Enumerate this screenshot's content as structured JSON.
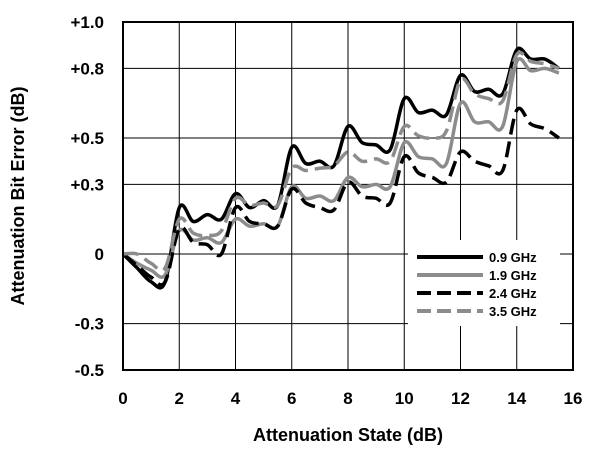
{
  "chart_data": {
    "type": "line",
    "xlabel": "Attenuation State (dB)",
    "ylabel": "Attenuation Bit Error (dB)",
    "xlim": [
      0,
      16
    ],
    "ylim": [
      -0.5,
      1.0
    ],
    "x_ticks": [
      0,
      2,
      4,
      6,
      8,
      10,
      12,
      14,
      16
    ],
    "x_tick_labels": [
      "0",
      "2",
      "4",
      "6",
      "8",
      "10",
      "12",
      "14",
      "16"
    ],
    "y_ticks": [
      1.0,
      0.8,
      0.5,
      0.3,
      0,
      -0.3,
      -0.5
    ],
    "y_tick_labels": [
      "+1.0",
      "+0.8",
      "+0.5",
      "+0.3",
      "0",
      "-0.3",
      "-0.5"
    ],
    "grid": true,
    "legend_position": "bottom-right",
    "x": [
      0,
      0.5,
      1,
      1.5,
      2,
      2.5,
      3,
      3.5,
      4,
      4.5,
      5,
      5.5,
      6,
      6.5,
      7,
      7.5,
      8,
      8.5,
      9,
      9.5,
      10,
      10.5,
      11,
      11.5,
      12,
      12.5,
      13,
      13.5,
      14,
      14.5,
      15,
      15.5
    ],
    "series": [
      {
        "name": "0.9 GHz",
        "color": "#000000",
        "dash": "solid",
        "values": [
          0,
          -0.06,
          -0.12,
          -0.12,
          0.2,
          0.14,
          0.17,
          0.15,
          0.26,
          0.2,
          0.23,
          0.21,
          0.46,
          0.39,
          0.4,
          0.38,
          0.55,
          0.48,
          0.47,
          0.45,
          0.67,
          0.61,
          0.62,
          0.6,
          0.77,
          0.7,
          0.71,
          0.69,
          0.88,
          0.84,
          0.84,
          0.8
        ]
      },
      {
        "name": "1.9 GHz",
        "color": "#8c8c8c",
        "dash": "solid",
        "values": [
          0,
          -0.04,
          -0.07,
          -0.09,
          0.1,
          0.06,
          0.07,
          0.05,
          0.15,
          0.12,
          0.13,
          0.12,
          0.29,
          0.24,
          0.25,
          0.23,
          0.33,
          0.29,
          0.3,
          0.29,
          0.48,
          0.42,
          0.41,
          0.39,
          0.65,
          0.57,
          0.57,
          0.55,
          0.83,
          0.79,
          0.8,
          0.78
        ]
      },
      {
        "name": "2.4 GHz",
        "color": "#000000",
        "dash": "dash",
        "values": [
          0,
          -0.05,
          -0.1,
          -0.12,
          0.11,
          0.05,
          0.04,
          0.0,
          0.2,
          0.14,
          0.13,
          0.12,
          0.28,
          0.22,
          0.2,
          0.19,
          0.31,
          0.25,
          0.24,
          0.22,
          0.42,
          0.35,
          0.33,
          0.31,
          0.44,
          0.4,
          0.38,
          0.36,
          0.62,
          0.56,
          0.54,
          0.5
        ]
      },
      {
        "name": "3.5 GHz",
        "color": "#8c8c8c",
        "dash": "dash",
        "values": [
          0,
          0,
          -0.04,
          -0.06,
          0.15,
          0.09,
          0.08,
          0.1,
          0.24,
          0.21,
          0.22,
          0.21,
          0.37,
          0.36,
          0.37,
          0.38,
          0.44,
          0.4,
          0.41,
          0.4,
          0.55,
          0.51,
          0.5,
          0.53,
          0.75,
          0.69,
          0.67,
          0.66,
          0.86,
          0.83,
          0.82,
          0.8
        ]
      }
    ]
  }
}
